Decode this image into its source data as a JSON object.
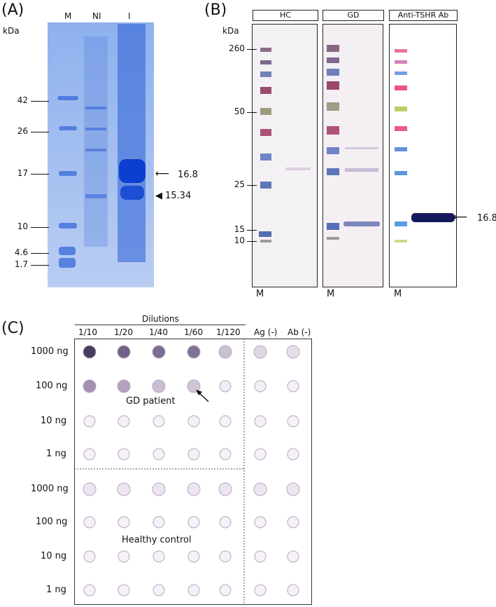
{
  "panelA": {
    "tag": "(A)",
    "kda": "kDa",
    "lanes": [
      "M",
      "NI",
      "I"
    ],
    "markers": [
      "42",
      "26",
      "17",
      "10",
      "4.6",
      "1.7"
    ],
    "bands": [
      "16.8",
      "15.34"
    ]
  },
  "panelB": {
    "tag": "(B)",
    "kda": "kDa",
    "headers": [
      "HC",
      "GD",
      "Anti-TSHR Ab"
    ],
    "markers": [
      "260",
      "50",
      "25",
      "15",
      "10"
    ],
    "band": "16.8",
    "lane": "M"
  },
  "panelC": {
    "tag": "(C)",
    "dilutions_title": "Dilutions",
    "columns": [
      "1/10",
      "1/20",
      "1/40",
      "1/60",
      "1/120",
      "Ag (-)",
      "Ab (-)"
    ],
    "rows": [
      "1000 ng",
      "100 ng",
      "10 ng",
      "1 ng",
      "1000 ng",
      "100 ng",
      "10 ng",
      "1 ng"
    ],
    "gd_label": "GD patient",
    "hc_label": "Healthy control"
  }
}
